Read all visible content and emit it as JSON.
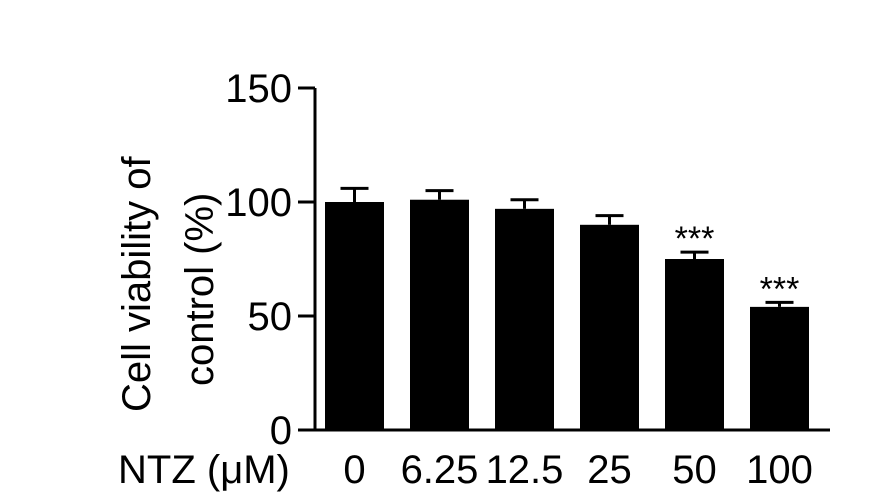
{
  "chart_data": {
    "type": "bar",
    "title": "",
    "xlabel": "NTZ (μM)",
    "ylabel_lines": [
      "Cell viability of",
      "control (%)"
    ],
    "categories": [
      "0",
      "6.25",
      "12.5",
      "25",
      "50",
      "100"
    ],
    "values": [
      100,
      101,
      97,
      90,
      75,
      54
    ],
    "errors": [
      6,
      4,
      4,
      4,
      3,
      2
    ],
    "significance": [
      "",
      "",
      "",
      "",
      "***",
      "***"
    ],
    "ylim": [
      0,
      150
    ],
    "yticks": [
      "0",
      "50",
      "100",
      "150"
    ],
    "grid": false,
    "legend": "none",
    "bar_color": "#000000"
  }
}
